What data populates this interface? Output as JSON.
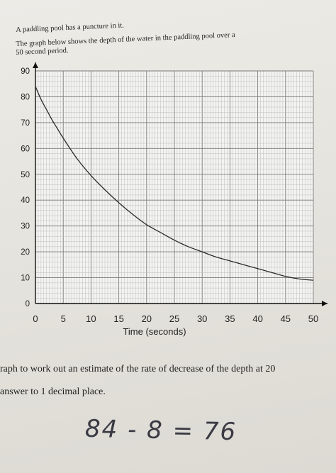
{
  "page": {
    "intro_line1": "A paddling pool has a puncture in it.",
    "intro_line2": "The graph below shows the depth of the water in the paddling pool over a",
    "intro_line3": "50 second period.",
    "question_line1": "raph to work out an estimate of the rate of decrease of the depth at 20",
    "question_line2": "answer to 1 decimal place.",
    "handwriting": "84 - 8 = 76"
  },
  "chart_data": {
    "type": "line",
    "title": "",
    "xlabel": "Time (seconds)",
    "ylabel": "",
    "xlim": [
      0,
      50
    ],
    "ylim": [
      0,
      90
    ],
    "x_ticks": [
      0,
      5,
      10,
      15,
      20,
      25,
      30,
      35,
      40,
      45,
      50
    ],
    "x_tick_labels": [
      "0",
      "5",
      "10",
      "15",
      "20",
      "25",
      "30",
      "35",
      "40",
      "45",
      "50"
    ],
    "y_ticks": [
      0,
      10,
      20,
      30,
      40,
      50,
      60,
      70,
      80,
      90
    ],
    "y_tick_labels": [
      "0",
      "10",
      "20",
      "30",
      "40",
      "50",
      "60",
      "70",
      "80",
      "90"
    ],
    "grid": true,
    "series": [
      {
        "name": "",
        "x": [
          0,
          1,
          2,
          3,
          4,
          5,
          7.5,
          10,
          12.5,
          15,
          17.5,
          20,
          22.5,
          25,
          27.5,
          30,
          32.5,
          35,
          37.5,
          40,
          42.5,
          45,
          47.5,
          50
        ],
        "y": [
          84,
          79,
          75,
          71,
          67.5,
          64,
          56,
          49.5,
          44,
          39,
          34.5,
          30.5,
          27.5,
          24.5,
          22,
          20,
          18,
          16.5,
          15,
          13.5,
          12,
          10.5,
          9.5,
          9
        ]
      }
    ],
    "colors": {
      "line": "#2b2b2b",
      "grid_minor": "#b9b9b9",
      "grid_major": "#7a7a7a",
      "axis": "#111111"
    }
  }
}
